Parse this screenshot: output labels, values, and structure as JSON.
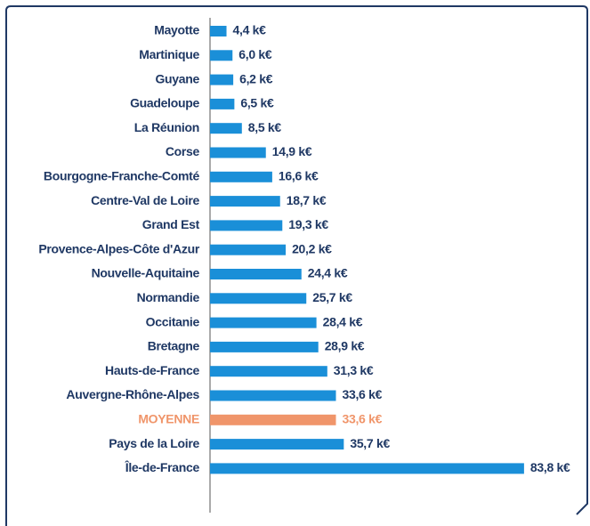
{
  "chart_data": {
    "type": "barh",
    "categories": [
      "Mayotte",
      "Martinique",
      "Guyane",
      "Guadeloupe",
      "La Réunion",
      "Corse",
      "Bourgogne-Franche-Comté",
      "Centre-Val de Loire",
      "Grand Est",
      "Provence-Alpes-Côte d'Azur",
      "Nouvelle-Aquitaine",
      "Normandie",
      "Occitanie",
      "Bretagne",
      "Hauts-de-France",
      "Auvergne-Rhône-Alpes",
      "MOYENNE",
      "Pays de la Loire",
      "Île-de-France"
    ],
    "values": [
      4.4,
      6.0,
      6.2,
      6.5,
      8.5,
      14.9,
      16.6,
      18.7,
      19.3,
      20.2,
      24.4,
      25.7,
      28.4,
      28.9,
      31.3,
      33.6,
      33.6,
      35.7,
      83.8
    ],
    "value_labels": [
      "4,4 k€",
      "6,0 k€",
      "6,2 k€",
      "6,5 k€",
      "8,5 k€",
      "14,9 k€",
      "16,6 k€",
      "18,7 k€",
      "19,3 k€",
      "20,2 k€",
      "24,4 k€",
      "25,7 k€",
      "28,4 k€",
      "28,9 k€",
      "31,3 k€",
      "33,6 k€",
      "33,6 k€",
      "35,7 k€",
      "83,8 k€"
    ],
    "colors": [
      "#1a8fd8",
      "#1a8fd8",
      "#1a8fd8",
      "#1a8fd8",
      "#1a8fd8",
      "#1a8fd8",
      "#1a8fd8",
      "#1a8fd8",
      "#1a8fd8",
      "#1a8fd8",
      "#1a8fd8",
      "#1a8fd8",
      "#1a8fd8",
      "#1a8fd8",
      "#1a8fd8",
      "#1a8fd8",
      "#f0956a",
      "#1a8fd8",
      "#1a8fd8"
    ],
    "xlim": [
      0,
      90
    ]
  }
}
